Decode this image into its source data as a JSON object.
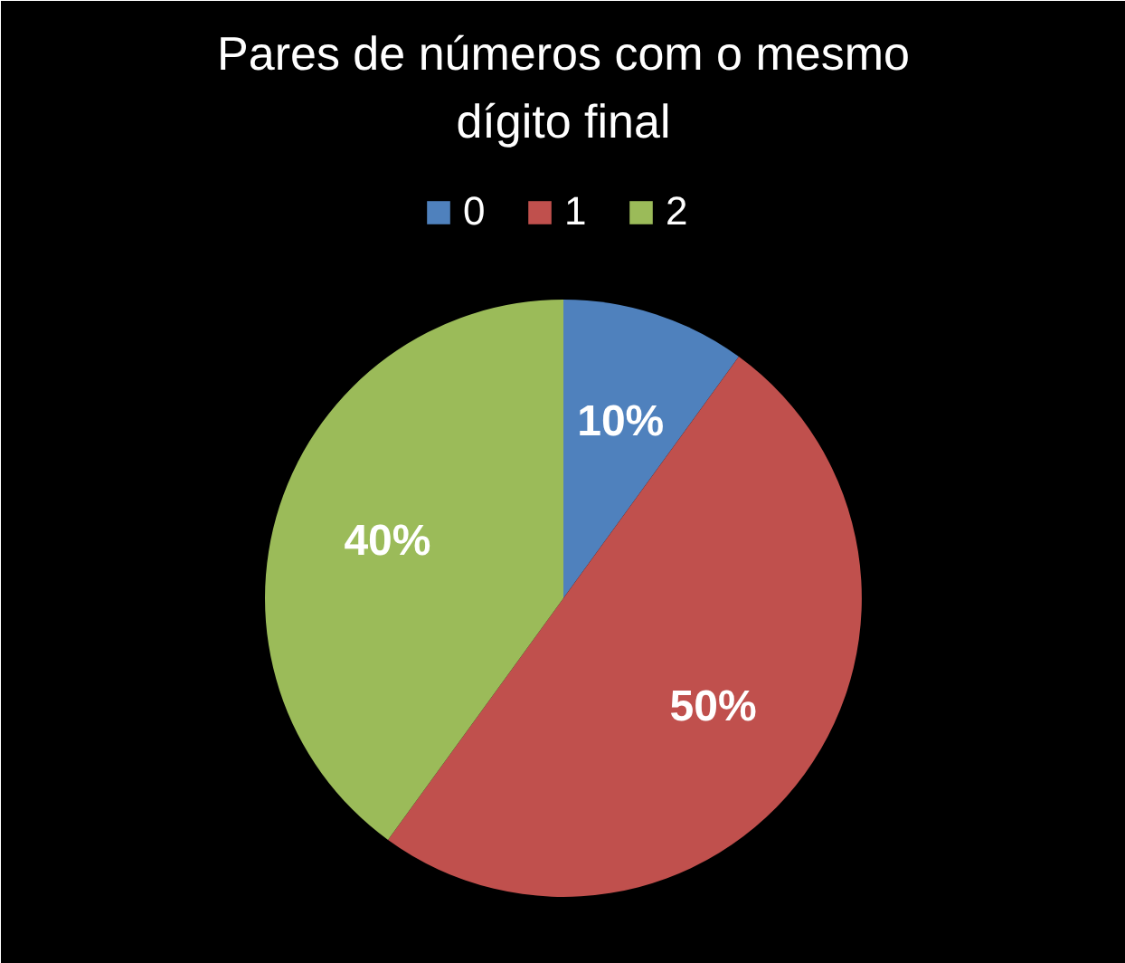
{
  "chart_data": {
    "type": "pie",
    "title": "Pares de números com o mesmo dígito final",
    "categories": [
      "0",
      "1",
      "2"
    ],
    "values": [
      10,
      50,
      40
    ],
    "colors": [
      "#4f81bd",
      "#c0504d",
      "#9bbb59"
    ],
    "value_labels": [
      "10%",
      "50%",
      "40%"
    ],
    "legend": "top"
  }
}
